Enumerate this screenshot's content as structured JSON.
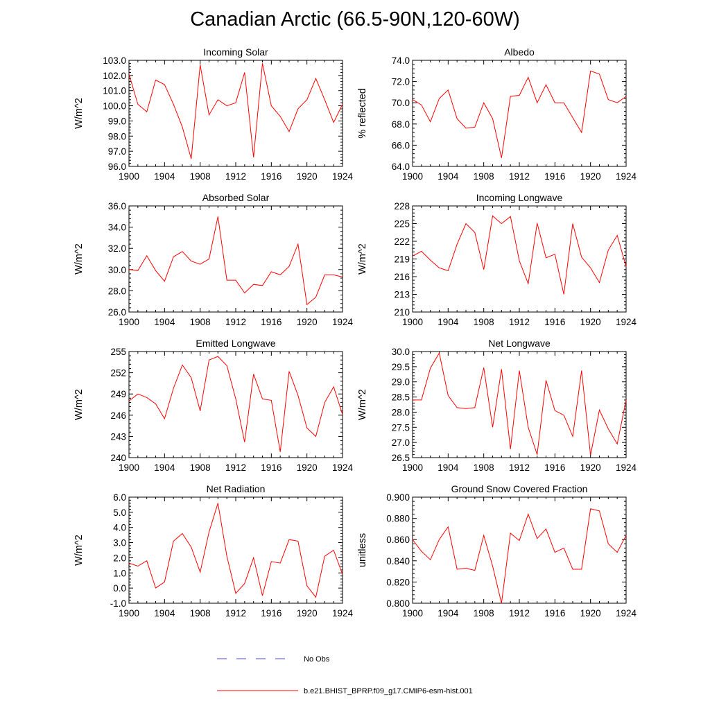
{
  "title": "Canadian Arctic (66.5-90N,120-60W)",
  "colors": {
    "model_line": "#ff0000",
    "obs_line": "#4a4ad0",
    "axis": "#000000"
  },
  "legend": [
    {
      "label": "No Obs",
      "style": "dashed",
      "color": "#4a4ad0"
    },
    {
      "label": "b.e21.BHIST_BPRP.f09_g17.CMIP6-esm-hist.001",
      "style": "solid",
      "color": "#ff0000"
    }
  ],
  "chart_data": [
    {
      "type": "line",
      "title": "Incoming Solar",
      "ylabel": "W/m^2",
      "xlim": [
        1900,
        1924
      ],
      "ylim": [
        96.0,
        103.0
      ],
      "xticks": [
        1900,
        1904,
        1908,
        1912,
        1916,
        1920,
        1924
      ],
      "yticks": [
        96.0,
        97.0,
        98.0,
        99.0,
        100.0,
        101.0,
        102.0,
        103.0
      ],
      "ytick_labels": [
        "96.0",
        "97.0",
        "98.0",
        "99.0",
        "100.0",
        "101.0",
        "102.0",
        "103.0"
      ],
      "series": [
        {
          "name": "b.e21.BHIST_BPRP.f09_g17.CMIP6-esm-hist.001",
          "x": [
            1900,
            1901,
            1902,
            1903,
            1904,
            1905,
            1906,
            1907,
            1908,
            1909,
            1910,
            1911,
            1912,
            1913,
            1914,
            1915,
            1916,
            1917,
            1918,
            1919,
            1920,
            1921,
            1922,
            1923,
            1924
          ],
          "values": [
            102.1,
            100.1,
            99.6,
            101.7,
            101.4,
            100.1,
            98.6,
            96.5,
            102.7,
            99.4,
            100.4,
            100.0,
            100.2,
            102.2,
            96.6,
            102.8,
            100.0,
            99.3,
            98.3,
            99.8,
            100.4,
            101.8,
            100.4,
            98.9,
            100.1
          ]
        }
      ]
    },
    {
      "type": "line",
      "title": "Albedo",
      "ylabel": "% reflected",
      "xlim": [
        1900,
        1924
      ],
      "ylim": [
        64.0,
        74.0
      ],
      "xticks": [
        1900,
        1904,
        1908,
        1912,
        1916,
        1920,
        1924
      ],
      "yticks": [
        64.0,
        66.0,
        68.0,
        70.0,
        72.0,
        74.0
      ],
      "ytick_labels": [
        "64.0",
        "66.0",
        "68.0",
        "70.0",
        "72.0",
        "74.0"
      ],
      "series": [
        {
          "name": "b.e21.BHIST_BPRP.f09_g17.CMIP6-esm-hist.001",
          "x": [
            1900,
            1901,
            1902,
            1903,
            1904,
            1905,
            1906,
            1907,
            1908,
            1909,
            1910,
            1911,
            1912,
            1913,
            1914,
            1915,
            1916,
            1917,
            1918,
            1919,
            1920,
            1921,
            1922,
            1923,
            1924
          ],
          "values": [
            70.3,
            69.8,
            68.2,
            70.4,
            71.2,
            68.5,
            67.6,
            67.7,
            70.0,
            68.5,
            64.8,
            70.6,
            70.7,
            72.4,
            70.0,
            71.7,
            70.0,
            70.0,
            68.6,
            67.2,
            73.0,
            72.7,
            70.3,
            70.0,
            70.6
          ]
        }
      ]
    },
    {
      "type": "line",
      "title": "Absorbed Solar",
      "ylabel": "W/m^2",
      "xlim": [
        1900,
        1924
      ],
      "ylim": [
        26.0,
        36.0
      ],
      "xticks": [
        1900,
        1904,
        1908,
        1912,
        1916,
        1920,
        1924
      ],
      "yticks": [
        26.0,
        28.0,
        30.0,
        32.0,
        34.0,
        36.0
      ],
      "ytick_labels": [
        "26.0",
        "28.0",
        "30.0",
        "32.0",
        "34.0",
        "36.0"
      ],
      "series": [
        {
          "name": "b.e21.BHIST_BPRP.f09_g17.CMIP6-esm-hist.001",
          "x": [
            1900,
            1901,
            1902,
            1903,
            1904,
            1905,
            1906,
            1907,
            1908,
            1909,
            1910,
            1911,
            1912,
            1913,
            1914,
            1915,
            1916,
            1917,
            1918,
            1919,
            1920,
            1921,
            1922,
            1923,
            1924
          ],
          "values": [
            30.0,
            29.9,
            31.3,
            29.9,
            28.9,
            31.2,
            31.7,
            30.8,
            30.5,
            31.0,
            35.0,
            29.0,
            29.0,
            27.8,
            28.6,
            28.5,
            29.8,
            29.5,
            30.3,
            32.4,
            26.7,
            27.4,
            29.5,
            29.5,
            29.3
          ]
        }
      ]
    },
    {
      "type": "line",
      "title": "Incoming Longwave",
      "ylabel": "W/m^2",
      "xlim": [
        1900,
        1924
      ],
      "ylim": [
        210,
        228
      ],
      "xticks": [
        1900,
        1904,
        1908,
        1912,
        1916,
        1920,
        1924
      ],
      "yticks": [
        210,
        213,
        216,
        219,
        222,
        225,
        228
      ],
      "ytick_labels": [
        "210",
        "213",
        "216",
        "219",
        "222",
        "225",
        "228"
      ],
      "series": [
        {
          "name": "b.e21.BHIST_BPRP.f09_g17.CMIP6-esm-hist.001",
          "x": [
            1900,
            1901,
            1902,
            1903,
            1904,
            1905,
            1906,
            1907,
            1908,
            1909,
            1910,
            1911,
            1912,
            1913,
            1914,
            1915,
            1916,
            1917,
            1918,
            1919,
            1920,
            1921,
            1922,
            1923,
            1924
          ],
          "values": [
            219.5,
            220.3,
            218.8,
            217.5,
            217.0,
            221.5,
            225.0,
            223.5,
            217.2,
            226.3,
            225.0,
            226.2,
            218.7,
            214.8,
            225.1,
            219.2,
            219.8,
            213.0,
            225.0,
            219.3,
            217.5,
            215.0,
            220.5,
            223.0,
            217.7
          ]
        }
      ]
    },
    {
      "type": "line",
      "title": "Emitted Longwave",
      "ylabel": "W/m^2",
      "xlim": [
        1900,
        1924
      ],
      "ylim": [
        240,
        255
      ],
      "xticks": [
        1900,
        1904,
        1908,
        1912,
        1916,
        1920,
        1924
      ],
      "yticks": [
        240,
        243,
        246,
        249,
        252,
        255
      ],
      "ytick_labels": [
        "240",
        "243",
        "246",
        "249",
        "252",
        "255"
      ],
      "series": [
        {
          "name": "b.e21.BHIST_BPRP.f09_g17.CMIP6-esm-hist.001",
          "x": [
            1900,
            1901,
            1902,
            1903,
            1904,
            1905,
            1906,
            1907,
            1908,
            1909,
            1910,
            1911,
            1912,
            1913,
            1914,
            1915,
            1916,
            1917,
            1918,
            1919,
            1920,
            1921,
            1922,
            1923,
            1924
          ],
          "values": [
            248.0,
            249.0,
            248.5,
            247.6,
            245.5,
            249.8,
            253.1,
            251.3,
            246.6,
            253.8,
            254.3,
            253.0,
            248.3,
            242.2,
            251.8,
            248.3,
            248.1,
            240.8,
            252.2,
            248.8,
            244.2,
            243.0,
            247.8,
            250.0,
            246.1
          ]
        }
      ]
    },
    {
      "type": "line",
      "title": "Net Longwave",
      "ylabel": "W/m^2",
      "xlim": [
        1900,
        1924
      ],
      "ylim": [
        26.5,
        30.0
      ],
      "xticks": [
        1900,
        1904,
        1908,
        1912,
        1916,
        1920,
        1924
      ],
      "yticks": [
        26.5,
        27.0,
        27.5,
        28.0,
        28.5,
        29.0,
        29.5,
        30.0
      ],
      "ytick_labels": [
        "26.5",
        "27.0",
        "27.5",
        "28.0",
        "28.5",
        "29.0",
        "29.5",
        "30.0"
      ],
      "series": [
        {
          "name": "b.e21.BHIST_BPRP.f09_g17.CMIP6-esm-hist.001",
          "x": [
            1900,
            1901,
            1902,
            1903,
            1904,
            1905,
            1906,
            1907,
            1908,
            1909,
            1910,
            1911,
            1912,
            1913,
            1914,
            1915,
            1916,
            1917,
            1918,
            1919,
            1920,
            1921,
            1922,
            1923,
            1924
          ],
          "values": [
            28.4,
            28.4,
            29.45,
            29.95,
            28.55,
            28.15,
            28.12,
            28.15,
            29.47,
            27.5,
            29.42,
            26.78,
            29.37,
            27.5,
            26.6,
            29.05,
            28.05,
            27.9,
            27.2,
            29.37,
            26.58,
            28.07,
            27.45,
            26.95,
            28.4
          ]
        }
      ]
    },
    {
      "type": "line",
      "title": "Net Radiation",
      "ylabel": "W/m^2",
      "xlim": [
        1900,
        1924
      ],
      "ylim": [
        -1.0,
        6.0
      ],
      "xticks": [
        1900,
        1904,
        1908,
        1912,
        1916,
        1920,
        1924
      ],
      "yticks": [
        -1.0,
        0.0,
        1.0,
        2.0,
        3.0,
        4.0,
        5.0,
        6.0
      ],
      "ytick_labels": [
        "-1.0",
        "0.0",
        "1.0",
        "2.0",
        "3.0",
        "4.0",
        "5.0",
        "6.0"
      ],
      "series": [
        {
          "name": "b.e21.BHIST_BPRP.f09_g17.CMIP6-esm-hist.001",
          "x": [
            1900,
            1901,
            1902,
            1903,
            1904,
            1905,
            1906,
            1907,
            1908,
            1909,
            1910,
            1911,
            1912,
            1913,
            1914,
            1915,
            1916,
            1917,
            1918,
            1919,
            1920,
            1921,
            1922,
            1923,
            1924
          ],
          "values": [
            1.65,
            1.45,
            1.8,
            0.0,
            0.4,
            3.1,
            3.6,
            2.7,
            1.05,
            3.7,
            5.6,
            2.1,
            -0.35,
            0.3,
            2.0,
            -0.5,
            1.75,
            1.65,
            3.2,
            3.1,
            0.15,
            -0.6,
            2.1,
            2.5,
            0.9
          ]
        }
      ]
    },
    {
      "type": "line",
      "title": "Ground Snow Covered Fraction",
      "ylabel": "unitless",
      "xlim": [
        1900,
        1924
      ],
      "ylim": [
        0.8,
        0.9
      ],
      "xticks": [
        1900,
        1904,
        1908,
        1912,
        1916,
        1920,
        1924
      ],
      "yticks": [
        0.8,
        0.82,
        0.84,
        0.86,
        0.88,
        0.9
      ],
      "ytick_labels": [
        "0.800",
        "0.820",
        "0.840",
        "0.860",
        "0.880",
        "0.900"
      ],
      "series": [
        {
          "name": "b.e21.BHIST_BPRP.f09_g17.CMIP6-esm-hist.001",
          "x": [
            1900,
            1901,
            1902,
            1903,
            1904,
            1905,
            1906,
            1907,
            1908,
            1909,
            1910,
            1911,
            1912,
            1913,
            1914,
            1915,
            1916,
            1917,
            1918,
            1919,
            1920,
            1921,
            1922,
            1923,
            1924
          ],
          "values": [
            0.86,
            0.849,
            0.841,
            0.86,
            0.872,
            0.832,
            0.833,
            0.831,
            0.864,
            0.835,
            0.8,
            0.866,
            0.859,
            0.884,
            0.861,
            0.87,
            0.848,
            0.852,
            0.832,
            0.832,
            0.889,
            0.887,
            0.856,
            0.848,
            0.864
          ]
        }
      ]
    }
  ]
}
